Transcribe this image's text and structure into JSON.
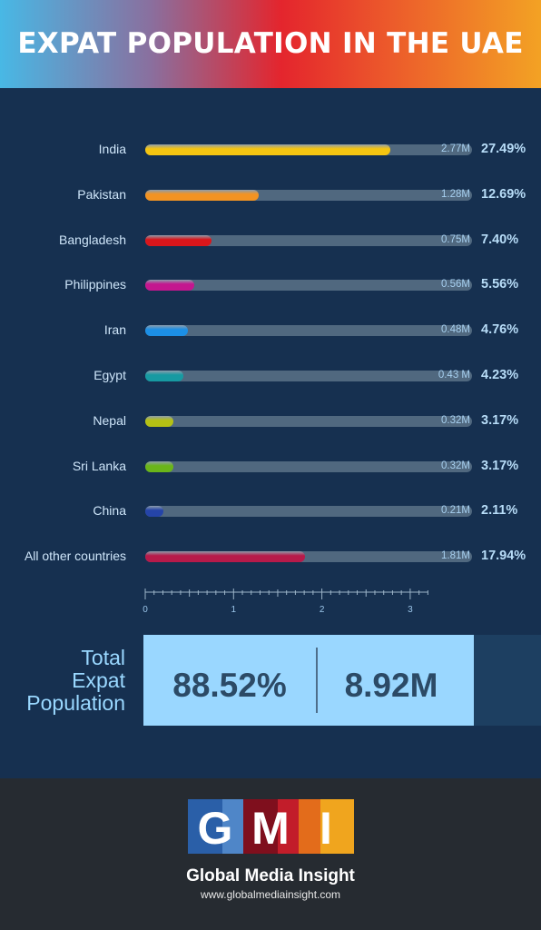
{
  "header": {
    "title": "EXPAT POPULATION IN THE UAE"
  },
  "chart_data": {
    "type": "bar",
    "orientation": "horizontal",
    "categories": [
      "India",
      "Pakistan",
      "Bangladesh",
      "Philippines",
      "Iran",
      "Egypt",
      "Nepal",
      "Sri Lanka",
      "China",
      "All other countries"
    ],
    "values": [
      2.77,
      1.28,
      0.75,
      0.56,
      0.48,
      0.43,
      0.32,
      0.32,
      0.21,
      1.81
    ],
    "value_labels": [
      "2.77M",
      "1.28M",
      "0.75M",
      "0.56M",
      "0.48M",
      "0.43 M",
      "0.32M",
      "0.32M",
      "0.21M",
      "1.81M"
    ],
    "percent_labels": [
      "27.49%",
      "12.69%",
      "7.40%",
      "5.56%",
      "4.76%",
      "4.23%",
      "3.17%",
      "3.17%",
      "2.11%",
      "17.94%"
    ],
    "colors": [
      "#f5c511",
      "#f39322",
      "#d9161b",
      "#c4168f",
      "#1c8fe6",
      "#179aa2",
      "#b4c114",
      "#6ab519",
      "#2544a8",
      "#b71a4a"
    ],
    "xlim": [
      0,
      3.2
    ],
    "x_ticks": [
      "0",
      "1",
      "2",
      "3"
    ],
    "grid": false,
    "legend": "none"
  },
  "total": {
    "label_lines": [
      "Total",
      "Expat",
      "Population"
    ],
    "percent": "88.52%",
    "count": "8.92M"
  },
  "footer": {
    "logo_letters": [
      "G",
      "M",
      "I"
    ],
    "brand_name": "Global Media Insight",
    "url": "www.globalmediainsight.com"
  }
}
